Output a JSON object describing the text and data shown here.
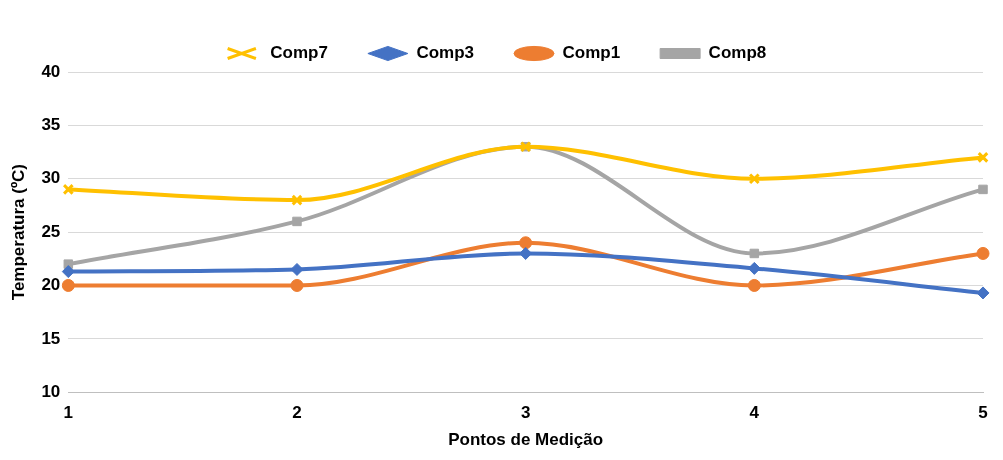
{
  "chart_data": {
    "type": "line",
    "xlabel": "Pontos de Medição",
    "ylabel": "Temperatura (ºC)",
    "categories": [
      "1",
      "2",
      "3",
      "4",
      "5"
    ],
    "series": [
      {
        "name": "Comp8",
        "color": "#a5a5a5",
        "marker": "square",
        "values": [
          22,
          26,
          33,
          23,
          29
        ]
      },
      {
        "name": "Comp1",
        "color": "#ed7d31",
        "marker": "circle",
        "values": [
          20,
          20,
          24,
          20,
          23
        ]
      },
      {
        "name": "Comp3",
        "color": "#4472c4",
        "marker": "diamond",
        "values": [
          21.3,
          21.5,
          23,
          21.6,
          19.3
        ]
      },
      {
        "name": "Comp7",
        "color": "#ffc000",
        "marker": "cross",
        "values": [
          29,
          28,
          33,
          30,
          32
        ]
      }
    ],
    "ylim": [
      10,
      40
    ],
    "yticks": [
      10,
      15,
      20,
      25,
      30,
      35,
      40
    ],
    "grid": "y",
    "legend": "top"
  }
}
